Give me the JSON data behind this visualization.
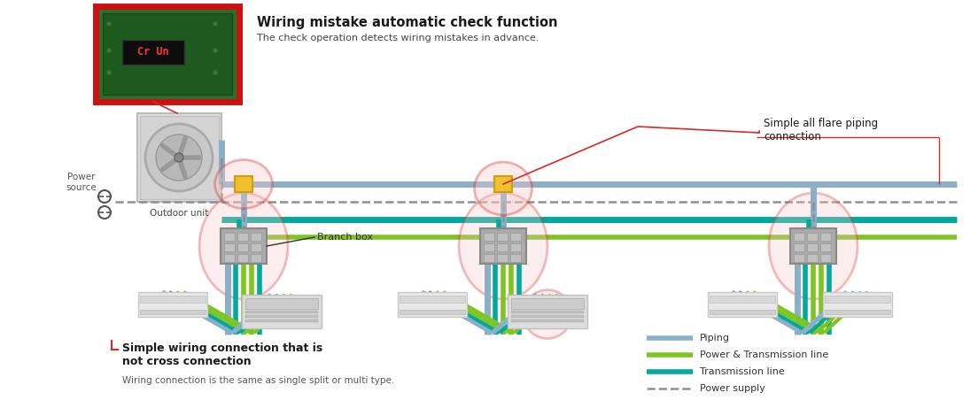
{
  "bg_color": "#ffffff",
  "title_text": "Wiring mistake automatic check function",
  "title_subtitle": "The check operation detects wiring mistakes in advance.",
  "title_fontsize": 10.5,
  "subtitle_fontsize": 8,
  "flare_text": "Simple all flare piping\nconnection",
  "flare_fontsize": 8.5,
  "wiring_text": "Simple wiring connection that is\nnot cross connection",
  "wiring_subtitle": "Wiring connection is the same as single split or multi type.",
  "wiring_fontsize": 9,
  "wiring_subtitle_fontsize": 7.5,
  "label_power_source": "Power\nsource",
  "label_outdoor": "Outdoor unit",
  "label_branch_box": "Branch box",
  "legend": [
    {
      "label": "Piping",
      "color": "#8aafc8",
      "style": "solid",
      "lw": 4
    },
    {
      "label": "Power & Transmission line",
      "color": "#7dc520",
      "style": "solid",
      "lw": 4
    },
    {
      "label": "Transmission line",
      "color": "#00a99d",
      "style": "solid",
      "lw": 4
    },
    {
      "label": "Power supply",
      "color": "#909090",
      "style": "dashed",
      "lw": 1.8
    }
  ],
  "colors": {
    "piping": "#8aafc8",
    "power_trans": "#7dc520",
    "transmission": "#00a99d",
    "power_supply": "#909090",
    "red": "#d42b2b",
    "yellow": "#f0c030",
    "branch_fill": "#aaaaaa",
    "pink_fill": "#f8c8c8",
    "pcb_green": "#2d6e2d",
    "pcb_border": "#cc1111"
  }
}
